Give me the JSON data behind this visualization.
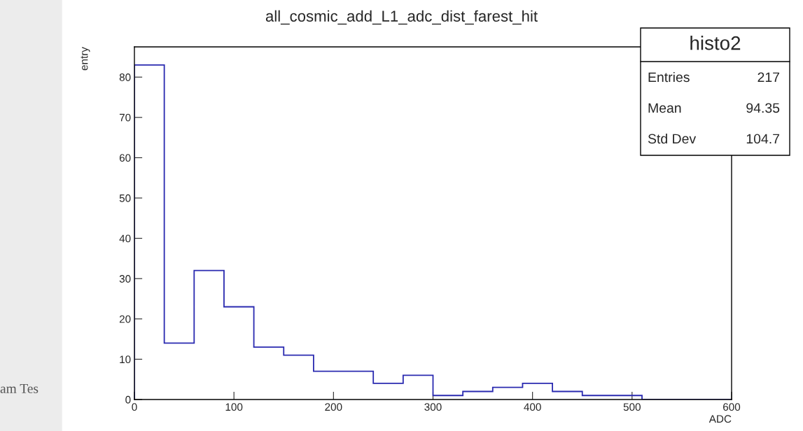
{
  "chart_data": {
    "type": "histogram",
    "title": "all_cosmic_add_L1_adc_dist_farest_hit",
    "xlabel": "ADC",
    "ylabel": "entry",
    "bins": [
      0,
      30,
      60,
      90,
      120,
      150,
      180,
      210,
      240,
      270,
      300,
      330,
      360,
      390,
      420,
      450,
      480,
      510,
      540,
      570,
      600
    ],
    "values": [
      83,
      14,
      32,
      23,
      13,
      11,
      7,
      7,
      4,
      6,
      1,
      2,
      3,
      4,
      2,
      1,
      1,
      0,
      0,
      0
    ],
    "color": "#2a2ab0",
    "xlim": [
      0,
      600
    ],
    "ylim": [
      0,
      87.5
    ],
    "xticks": [
      0,
      100,
      200,
      300,
      400,
      500,
      600
    ],
    "yticks": [
      0,
      10,
      20,
      30,
      40,
      50,
      60,
      70,
      80
    ],
    "grid": false,
    "annotations": [
      "histo2",
      "Entries",
      "217",
      "Mean",
      "94.35",
      "Std Dev",
      "104.7",
      "am Tes"
    ]
  }
}
